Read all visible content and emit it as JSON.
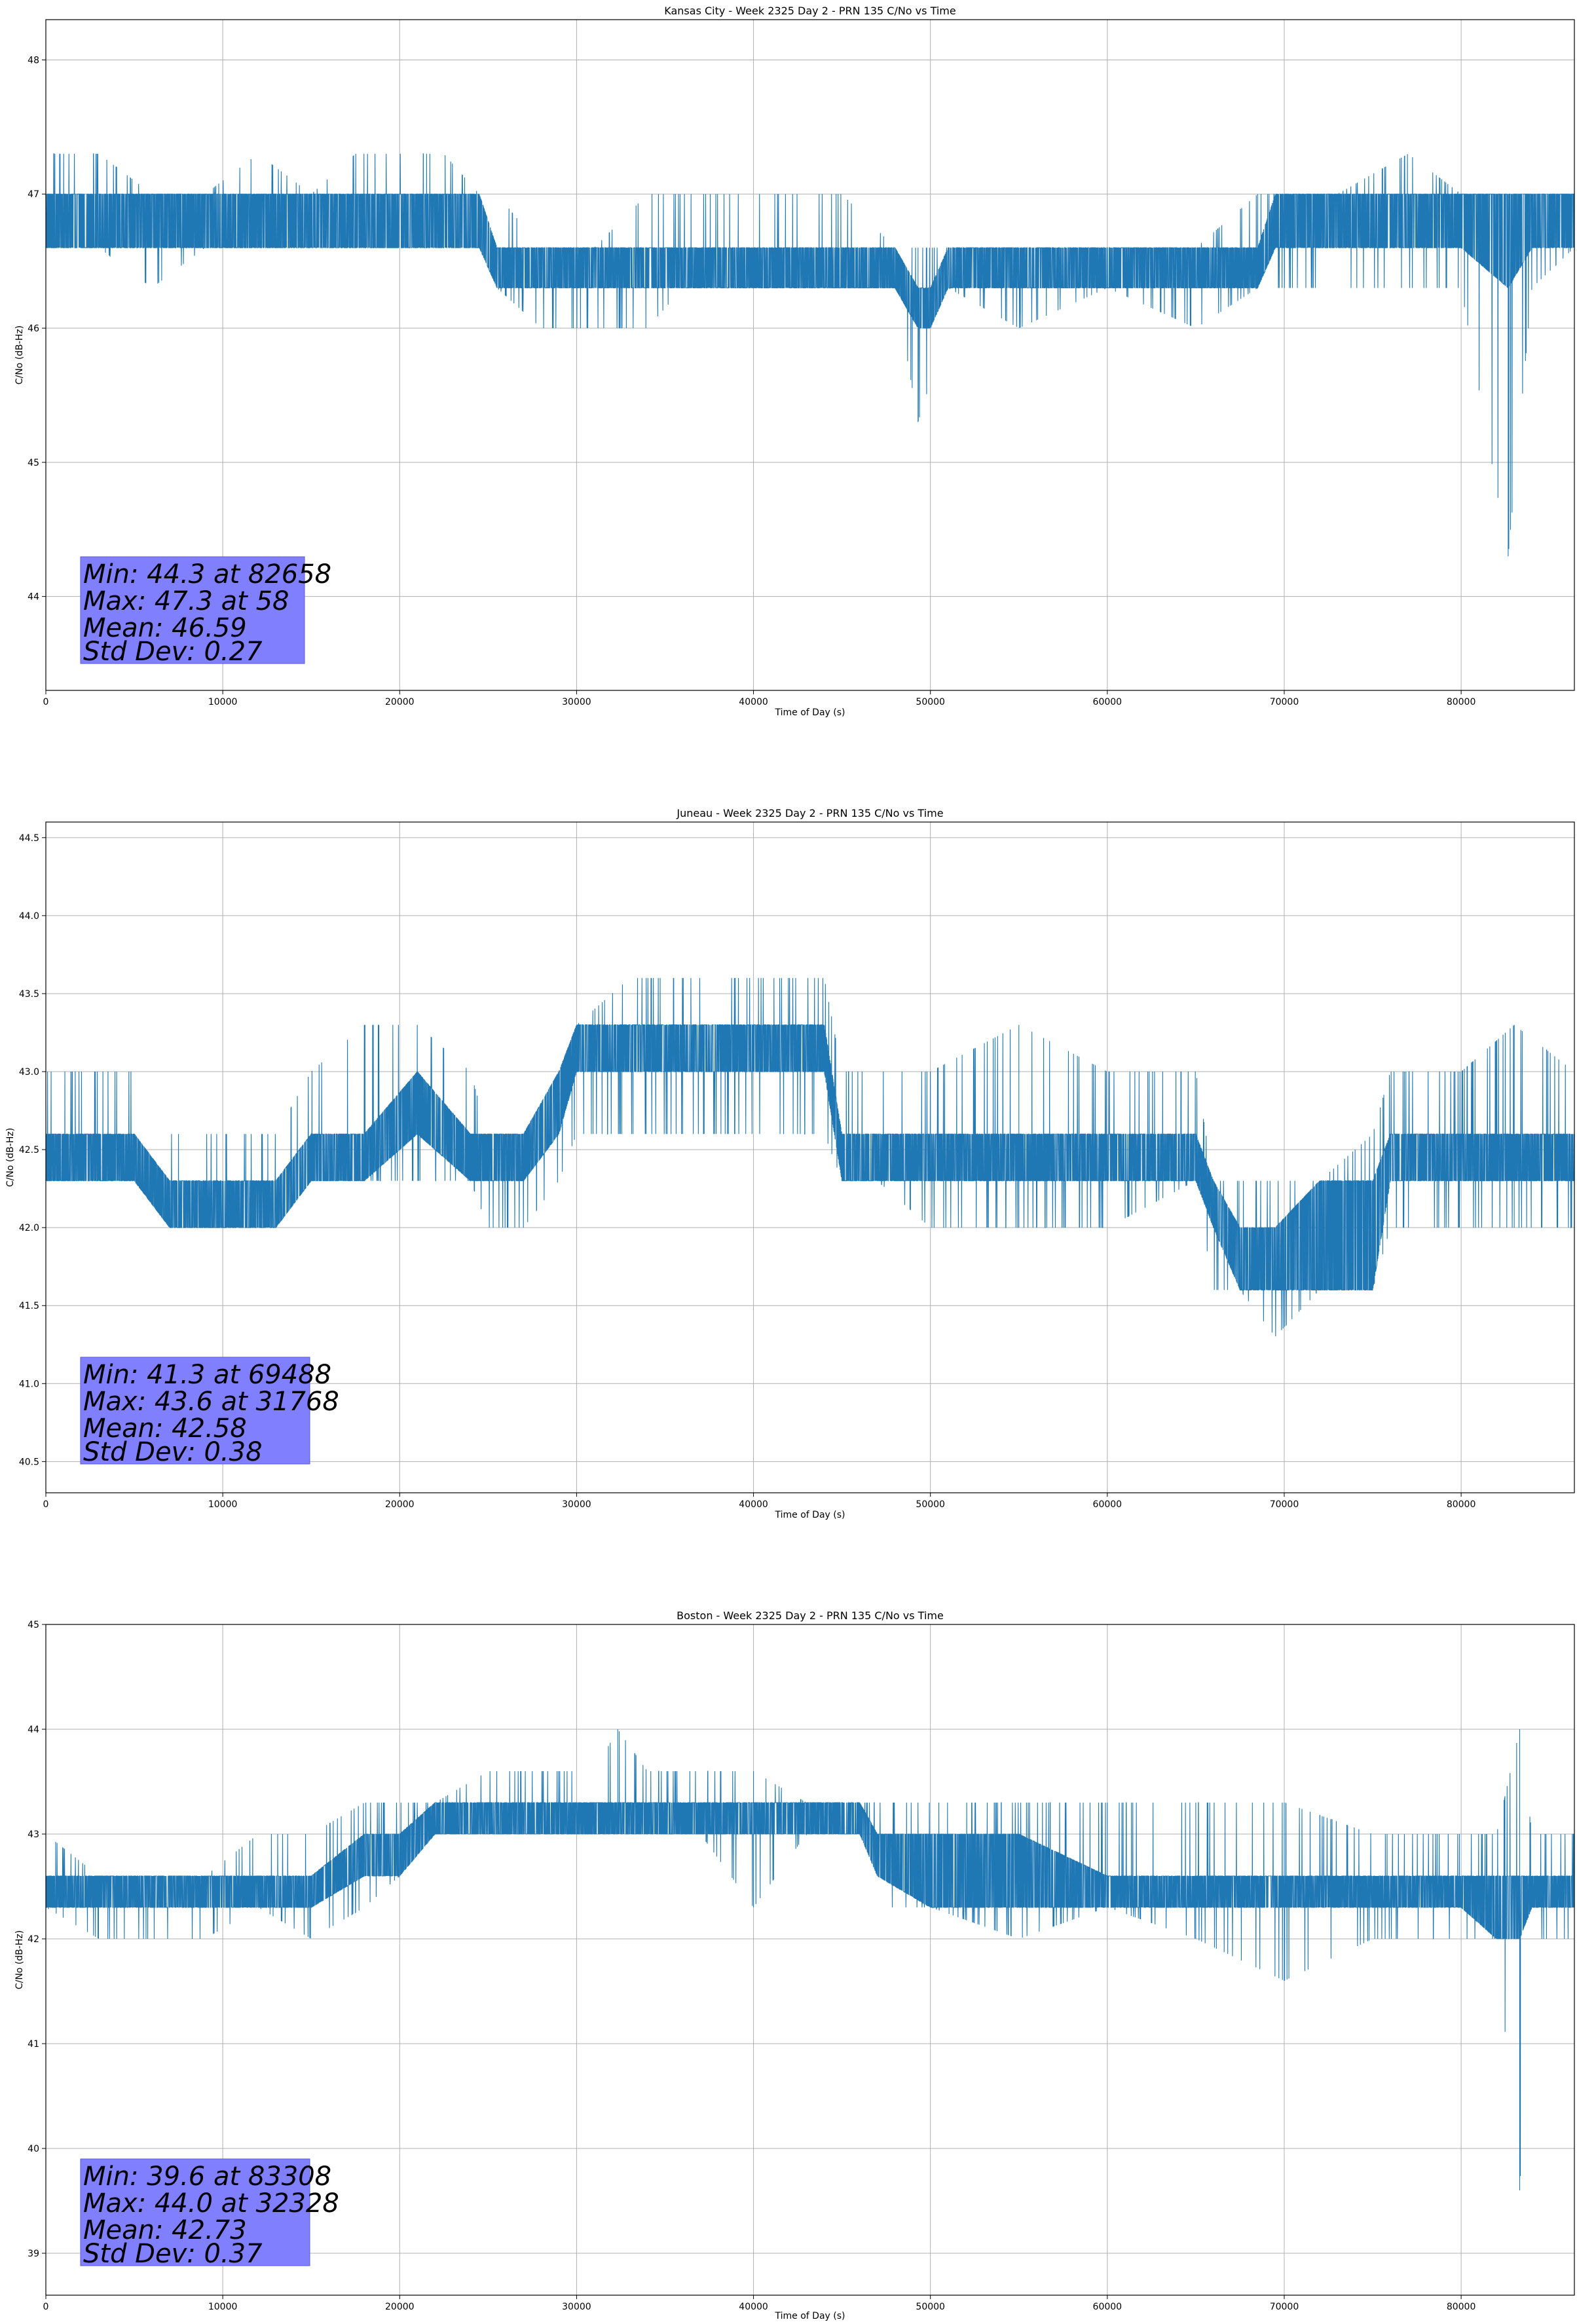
{
  "colors": {
    "line": "#1f77b4",
    "grid": "#b0b0b0",
    "stats_box": "#8080ff"
  },
  "chart_data": [
    {
      "type": "line",
      "title": "Kansas City - Week 2325 Day 2 - PRN 135 C/No vs Time",
      "xlabel": "Time of Day (s)",
      "ylabel": "C/No (dB-Hz)",
      "xlim": [
        0,
        86400
      ],
      "ylim": [
        43.3,
        48.3
      ],
      "xticks": [
        0,
        10000,
        20000,
        30000,
        40000,
        50000,
        60000,
        70000,
        80000
      ],
      "yticks": [
        44,
        45,
        46,
        47,
        48
      ],
      "grid": true,
      "legend": "none",
      "stats": {
        "min": "Min: 44.3 at 82658",
        "max": "Max: 47.3 at 58",
        "mean": "Mean: 46.59",
        "std": "Std Dev: 0.27"
      },
      "series": [
        {
          "x": [
            0,
            3000,
            6000,
            9000,
            12000,
            15000,
            17500,
            20000,
            22500,
            24500,
            25500,
            28000,
            31000,
            34000,
            36000,
            39000,
            42000,
            45000,
            48000,
            49300,
            50000,
            51000,
            55000,
            60000,
            65000,
            68500,
            69500,
            73000,
            77000,
            80000,
            82658,
            84000,
            86400
          ],
          "low": [
            46.6,
            46.6,
            46.3,
            46.6,
            46.6,
            46.6,
            46.6,
            46.6,
            46.6,
            46.6,
            46.3,
            46.0,
            46.0,
            46.0,
            46.3,
            46.3,
            46.3,
            46.3,
            46.3,
            45.3,
            45.6,
            46.3,
            46.0,
            46.3,
            46.0,
            46.3,
            46.3,
            46.3,
            46.3,
            46.3,
            44.3,
            46.3,
            46.6
          ],
          "mid_low": [
            46.6,
            46.6,
            46.6,
            46.6,
            46.6,
            46.6,
            46.6,
            46.6,
            46.6,
            46.6,
            46.3,
            46.3,
            46.3,
            46.3,
            46.3,
            46.3,
            46.3,
            46.3,
            46.3,
            46.0,
            46.0,
            46.3,
            46.3,
            46.3,
            46.3,
            46.3,
            46.6,
            46.6,
            46.6,
            46.6,
            46.3,
            46.6,
            46.6
          ],
          "mid_high": [
            47.0,
            47.0,
            47.0,
            47.0,
            47.0,
            47.0,
            47.0,
            47.0,
            47.0,
            47.0,
            46.6,
            46.6,
            46.6,
            46.6,
            46.6,
            46.6,
            46.6,
            46.6,
            46.6,
            46.3,
            46.3,
            46.6,
            46.6,
            46.6,
            46.6,
            46.6,
            47.0,
            47.0,
            47.0,
            47.0,
            47.0,
            47.0,
            47.0
          ],
          "high": [
            47.3,
            47.3,
            47.0,
            47.0,
            47.3,
            47.0,
            47.3,
            47.3,
            47.3,
            47.0,
            47.0,
            46.6,
            46.6,
            47.0,
            47.0,
            47.0,
            47.0,
            47.0,
            46.6,
            46.6,
            46.6,
            46.6,
            46.6,
            46.6,
            46.6,
            47.0,
            47.0,
            47.0,
            47.3,
            47.0,
            47.0,
            47.0,
            47.0
          ]
        }
      ]
    },
    {
      "type": "line",
      "title": "Juneau - Week 2325 Day 2 - PRN 135 C/No vs Time",
      "xlabel": "Time of Day (s)",
      "ylabel": "C/No (dB-Hz)",
      "xlim": [
        0,
        86400
      ],
      "ylim": [
        40.3,
        44.6
      ],
      "xticks": [
        0,
        10000,
        20000,
        30000,
        40000,
        50000,
        60000,
        70000,
        80000
      ],
      "yticks": [
        40.5,
        41.0,
        41.5,
        42.0,
        42.5,
        43.0,
        43.5,
        44.0,
        44.5
      ],
      "grid": true,
      "legend": "none",
      "stats": {
        "min": "Min: 41.3 at 69488",
        "max": "Max: 43.6 at 31768",
        "mean": "Mean: 42.58",
        "std": "Std Dev: 0.38"
      },
      "series": [
        {
          "x": [
            0,
            3000,
            5000,
            7000,
            10000,
            13000,
            15000,
            18000,
            21000,
            24000,
            25000,
            27000,
            29000,
            30000,
            33000,
            36000,
            38000,
            41000,
            44000,
            45000,
            47000,
            50000,
            55000,
            60000,
            65000,
            66000,
            67500,
            69488,
            72000,
            75000,
            76000,
            80000,
            83000,
            86400
          ],
          "low": [
            42.3,
            42.3,
            42.3,
            42.0,
            42.0,
            42.0,
            42.3,
            42.3,
            42.3,
            42.3,
            42.0,
            42.0,
            42.3,
            42.6,
            42.6,
            42.6,
            42.6,
            42.6,
            42.6,
            42.3,
            42.3,
            42.0,
            42.0,
            42.0,
            42.3,
            41.6,
            41.6,
            41.3,
            41.6,
            41.6,
            42.0,
            42.0,
            42.0,
            42.0
          ],
          "mid_low": [
            42.3,
            42.3,
            42.3,
            42.0,
            42.0,
            42.0,
            42.3,
            42.3,
            42.6,
            42.3,
            42.3,
            42.3,
            42.6,
            43.0,
            43.0,
            43.0,
            43.0,
            43.0,
            43.0,
            42.3,
            42.3,
            42.3,
            42.3,
            42.3,
            42.3,
            42.0,
            41.6,
            41.6,
            41.6,
            41.6,
            42.3,
            42.3,
            42.3,
            42.3
          ],
          "mid_high": [
            42.6,
            42.6,
            42.6,
            42.3,
            42.3,
            42.3,
            42.6,
            42.6,
            43.0,
            42.6,
            42.6,
            42.6,
            43.0,
            43.3,
            43.3,
            43.3,
            43.3,
            43.3,
            43.3,
            42.6,
            42.6,
            42.6,
            42.6,
            42.6,
            42.6,
            42.3,
            42.0,
            42.0,
            42.3,
            42.3,
            42.6,
            42.6,
            42.6,
            42.6
          ],
          "high": [
            43.0,
            43.0,
            43.0,
            42.6,
            42.6,
            42.6,
            43.0,
            43.3,
            43.3,
            43.0,
            42.6,
            42.6,
            43.0,
            43.3,
            43.6,
            43.6,
            43.6,
            43.6,
            43.6,
            43.0,
            43.0,
            43.0,
            43.3,
            43.0,
            43.0,
            42.3,
            42.3,
            42.3,
            42.3,
            42.6,
            43.0,
            43.0,
            43.3,
            43.0
          ]
        }
      ]
    },
    {
      "type": "line",
      "title": "Boston - Week 2325 Day 2 - PRN 135 C/No vs Time",
      "xlabel": "Time of Day (s)",
      "ylabel": "C/No (dB-Hz)",
      "xlim": [
        0,
        86400
      ],
      "ylim": [
        38.6,
        45.0
      ],
      "xticks": [
        0,
        10000,
        20000,
        30000,
        40000,
        50000,
        60000,
        70000,
        80000
      ],
      "yticks": [
        39,
        40,
        41,
        42,
        43,
        44,
        45
      ],
      "grid": true,
      "legend": "none",
      "stats": {
        "min": "Min: 39.6 at 83308",
        "max": "Max: 44.0 at 32328",
        "mean": "Mean: 42.73",
        "std": "Std Dev: 0.37"
      },
      "series": [
        {
          "x": [
            0,
            3000,
            6000,
            9000,
            12000,
            15000,
            18000,
            20000,
            22000,
            25000,
            28000,
            31000,
            32328,
            34000,
            37000,
            40000,
            43000,
            46000,
            47000,
            50000,
            55000,
            60000,
            65000,
            70000,
            75000,
            80000,
            82000,
            83308,
            84000,
            86400
          ],
          "low": [
            42.3,
            42.0,
            42.0,
            42.0,
            42.3,
            42.0,
            42.3,
            42.6,
            43.0,
            43.0,
            43.0,
            43.0,
            43.0,
            43.0,
            43.0,
            42.3,
            43.0,
            43.0,
            42.3,
            42.3,
            42.0,
            42.3,
            42.0,
            41.6,
            42.0,
            42.0,
            42.0,
            39.6,
            42.0,
            42.0
          ],
          "mid_low": [
            42.3,
            42.3,
            42.3,
            42.3,
            42.3,
            42.3,
            42.6,
            42.6,
            43.0,
            43.0,
            43.0,
            43.0,
            43.0,
            43.0,
            43.0,
            43.0,
            43.0,
            43.0,
            42.6,
            42.3,
            42.3,
            42.3,
            42.3,
            42.3,
            42.3,
            42.3,
            42.0,
            42.0,
            42.3,
            42.3
          ],
          "mid_high": [
            42.6,
            42.6,
            42.6,
            42.6,
            42.6,
            42.6,
            43.0,
            43.0,
            43.3,
            43.3,
            43.3,
            43.3,
            43.3,
            43.3,
            43.3,
            43.3,
            43.3,
            43.3,
            43.0,
            43.0,
            43.0,
            42.6,
            42.6,
            42.6,
            42.6,
            42.6,
            42.6,
            42.6,
            42.6,
            42.6
          ],
          "high": [
            43.0,
            42.6,
            42.6,
            42.6,
            43.0,
            43.0,
            43.3,
            43.3,
            43.3,
            43.6,
            43.6,
            43.6,
            44.0,
            43.6,
            43.6,
            43.6,
            43.3,
            43.3,
            43.3,
            43.3,
            43.3,
            43.3,
            43.3,
            43.3,
            43.0,
            43.0,
            43.0,
            44.0,
            43.0,
            43.0
          ]
        }
      ]
    }
  ]
}
